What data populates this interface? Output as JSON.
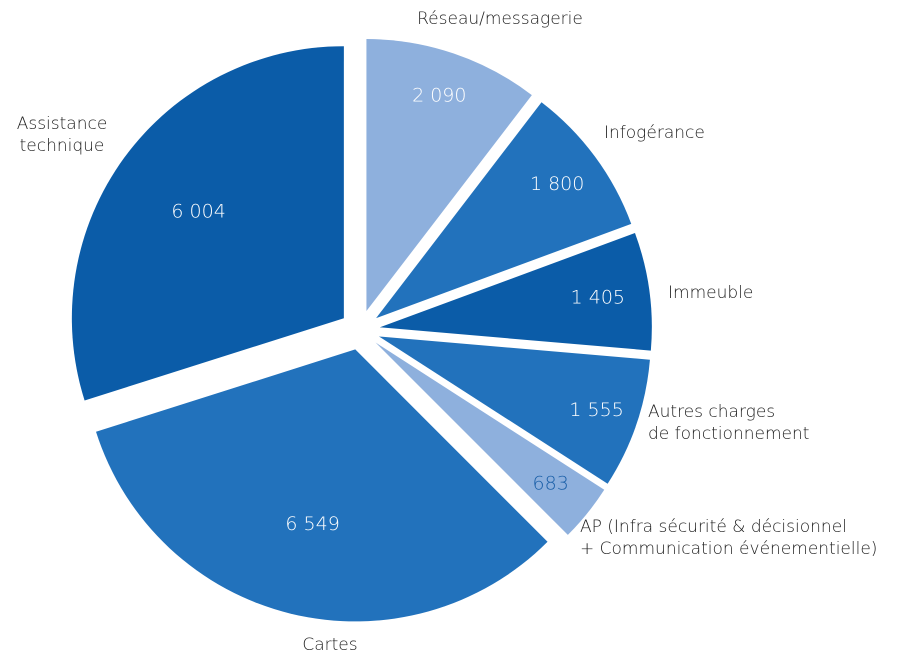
{
  "chart_data": {
    "type": "pie",
    "categories": [
      "Réseau/messagerie",
      "Infogérance",
      "Immeuble",
      "Autres charges\nde fonctionnement",
      "AP (Infra sécurité & décisionnel\n+ Communication événementielle)",
      "Cartes",
      "Assistance\ntechnique"
    ],
    "values": [
      2090,
      1800,
      1405,
      1555,
      683,
      6549,
      6004
    ],
    "value_labels": [
      "2 090",
      "1 800",
      "1 405",
      "1 555",
      "683",
      "6 549",
      "6 004"
    ],
    "colors": [
      "#8eb0dd",
      "#2272bc",
      "#0b5ca8",
      "#2272bc",
      "#8eb0dd",
      "#2272bc",
      "#0b5ca8"
    ]
  }
}
